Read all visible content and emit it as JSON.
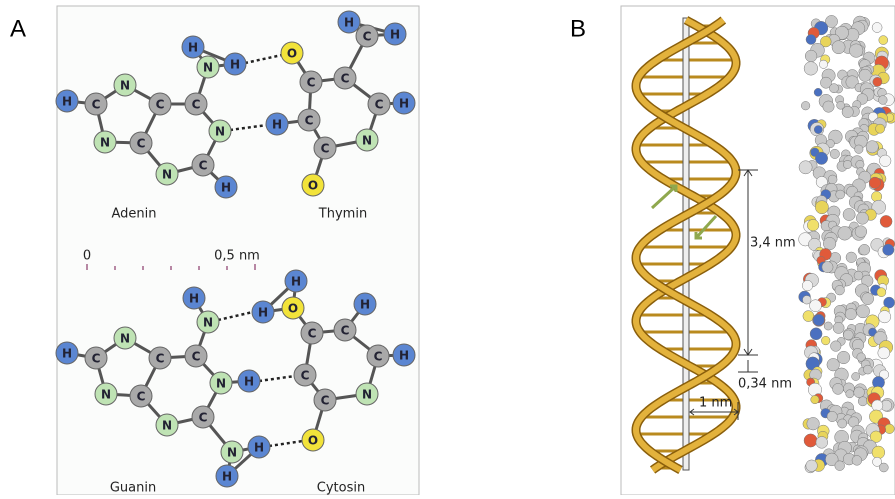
{
  "panels": [
    {
      "label": "A",
      "atom_colors": {
        "H": "#5b86d2",
        "N": "#bfe3b4",
        "C": "#a9a9a9",
        "O": "#f2e33a"
      },
      "molecules": [
        {
          "name": "Adenin",
          "atoms": [
            "H",
            "N",
            "H",
            "H",
            "C",
            "N",
            "C",
            "C",
            "N",
            "C",
            "N",
            "N",
            "C",
            "H"
          ]
        },
        {
          "name": "Thymin",
          "atoms": [
            "H",
            "C",
            "H",
            "O",
            "C",
            "C",
            "C",
            "H",
            "H",
            "C",
            "N",
            "C",
            "O"
          ]
        },
        {
          "name": "Guanin",
          "atoms": [
            "H",
            "N",
            "H",
            "C",
            "N",
            "C",
            "C",
            "N",
            "C",
            "N",
            "N",
            "C",
            "N",
            "H",
            "H",
            "H"
          ]
        },
        {
          "name": "Cytosin",
          "atoms": [
            "H",
            "O",
            "H",
            "C",
            "C",
            "H",
            "C",
            "H",
            "C",
            "N",
            "C",
            "O"
          ]
        }
      ],
      "scale": {
        "start": "0",
        "end": "0,5 nm"
      }
    },
    {
      "label": "B",
      "measures": {
        "pitch": "3,4 nm",
        "rise": "0,34 nm",
        "radius": "1 nm"
      }
    }
  ]
}
